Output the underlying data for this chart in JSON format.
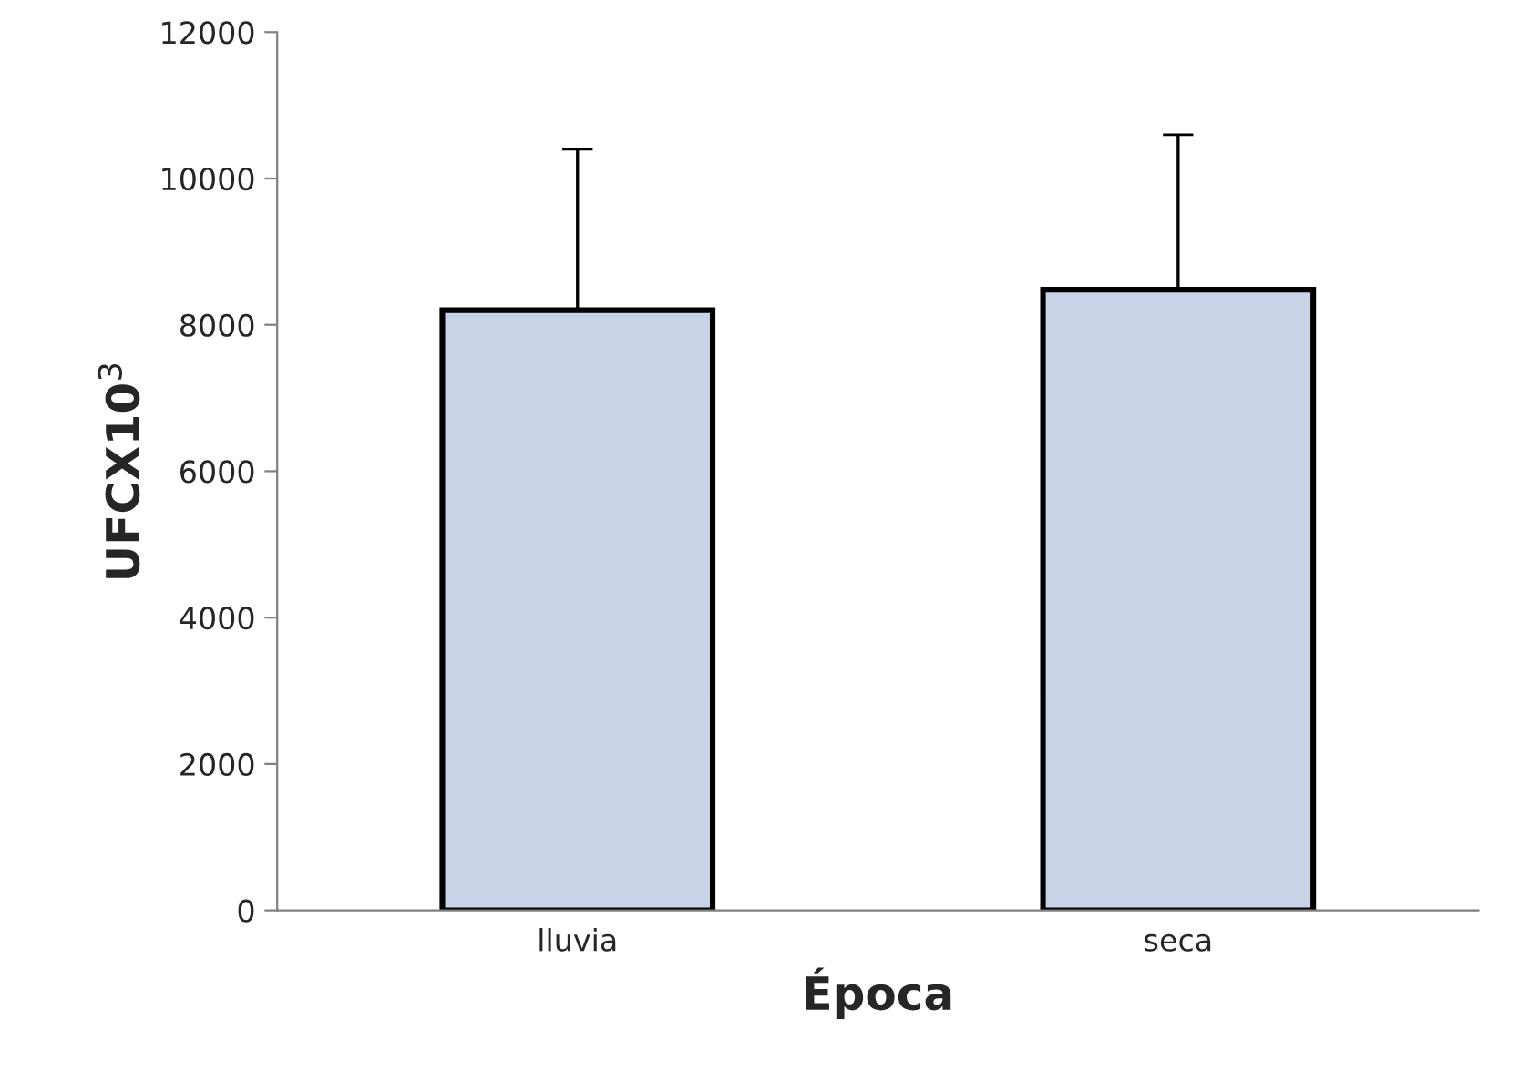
{
  "chart_data": {
    "type": "bar",
    "xlabel": "Época",
    "ylabel": "UFCX10$^{3}$",
    "categories": [
      "lluvia",
      "seca"
    ],
    "series": [
      {
        "color": "#c9d3e8",
        "values": [
          8200,
          8480
        ],
        "errors": [
          [
            8200,
            10400
          ],
          [
            8480,
            10600
          ]
        ]
      }
    ],
    "ylim": [
      0,
      12000
    ],
    "yticks": [
      0,
      2000,
      4000,
      6000,
      8000,
      10000,
      12000
    ],
    "grid": false,
    "legend": false
  }
}
